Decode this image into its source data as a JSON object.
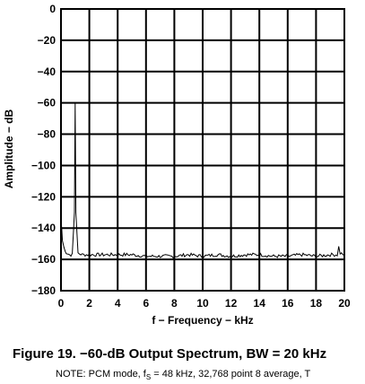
{
  "chart_data": {
    "type": "line",
    "title": "",
    "xlabel": "f − Frequency − kHz",
    "ylabel": "Amplitude − dB",
    "xlim": [
      0,
      20
    ],
    "ylim": [
      -180,
      0
    ],
    "x_ticks": [
      "0",
      "2",
      "4",
      "6",
      "8",
      "10",
      "12",
      "14",
      "16",
      "18",
      "20"
    ],
    "y_ticks": [
      "0",
      "−20",
      "−40",
      "−60",
      "−80",
      "−100",
      "−120",
      "−140",
      "−160",
      "−180"
    ],
    "grid": true,
    "line_color": "#000000",
    "series": [
      {
        "x": [
          0.0,
          0.05,
          0.1,
          0.2,
          0.3,
          0.45,
          0.6,
          0.8,
          0.95,
          0.98,
          1.0,
          1.02,
          1.05,
          1.2,
          1.5,
          2,
          3,
          4,
          5,
          6,
          7,
          8,
          9,
          10,
          11,
          12,
          13,
          14,
          15,
          16,
          17,
          18,
          19,
          19.5,
          19.6,
          19.7,
          20
        ],
        "y": [
          -136,
          -140,
          -148,
          -152,
          -155,
          -156,
          -157,
          -157,
          -130,
          -85,
          -60,
          -85,
          -130,
          -156,
          -157,
          -157,
          -157,
          -157,
          -157,
          -158,
          -158,
          -158,
          -157,
          -158,
          -157,
          -158,
          -157,
          -157,
          -158,
          -158,
          -157,
          -158,
          -157,
          -157,
          -152,
          -156,
          -157
        ]
      }
    ]
  },
  "figure": {
    "caption": "Figure 19. −60-dB Output Spectrum, BW = 20 kHz",
    "note_prefix": "NOTE:   PCM mode, f",
    "note_sub": "S",
    "note_suffix": " = 48 kHz, 32,768 point 8 average, T"
  }
}
